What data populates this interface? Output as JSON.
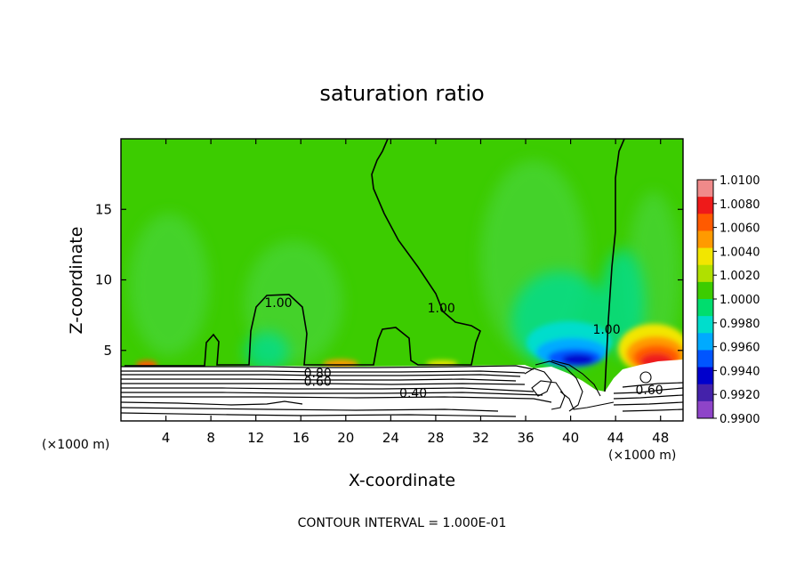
{
  "chart_data": {
    "type": "heatmap",
    "title": "saturation ratio",
    "xlabel": "X-coordinate",
    "ylabel": "Z-coordinate",
    "x_unit_left": "(×1000 m)",
    "x_unit_right": "(×1000 m)",
    "footer": "CONTOUR INTERVAL = 1.000E-01",
    "xlim": [
      0,
      50
    ],
    "ylim": [
      0,
      20
    ],
    "x_ticks": [
      4,
      8,
      12,
      16,
      20,
      24,
      28,
      32,
      36,
      40,
      44,
      48
    ],
    "y_ticks": [
      5,
      10,
      15
    ],
    "grid": false,
    "colorbar": {
      "position": "right",
      "min": 0.99,
      "max": 1.01,
      "labels": [
        "1.0100",
        "1.0080",
        "1.0060",
        "1.0040",
        "1.0020",
        "1.0000",
        "0.9980",
        "0.9960",
        "0.9940",
        "0.9920",
        "0.9900"
      ],
      "colors": [
        "#f08a8a",
        "#ee1a1a",
        "#ff5a00",
        "#ff9a00",
        "#f2e600",
        "#b0e000",
        "#3ccc00",
        "#00dd6e",
        "#00ddcc",
        "#00aaff",
        "#0055ff",
        "#0000cc",
        "#4422aa",
        "#8e44c8"
      ]
    },
    "contour_labels": [
      {
        "text": "1.00",
        "x": 14.0,
        "z": 8.4
      },
      {
        "text": "1.00",
        "x": 28.5,
        "z": 8.0
      },
      {
        "text": "1.00",
        "x": 43.2,
        "z": 6.5
      },
      {
        "text": "0.80",
        "x": 17.5,
        "z": 3.4
      },
      {
        "text": "0.60",
        "x": 17.5,
        "z": 2.8
      },
      {
        "text": "0.40",
        "x": 26.0,
        "z": 2.0
      },
      {
        "text": "0.60",
        "x": 47.0,
        "z": 2.2
      }
    ]
  }
}
